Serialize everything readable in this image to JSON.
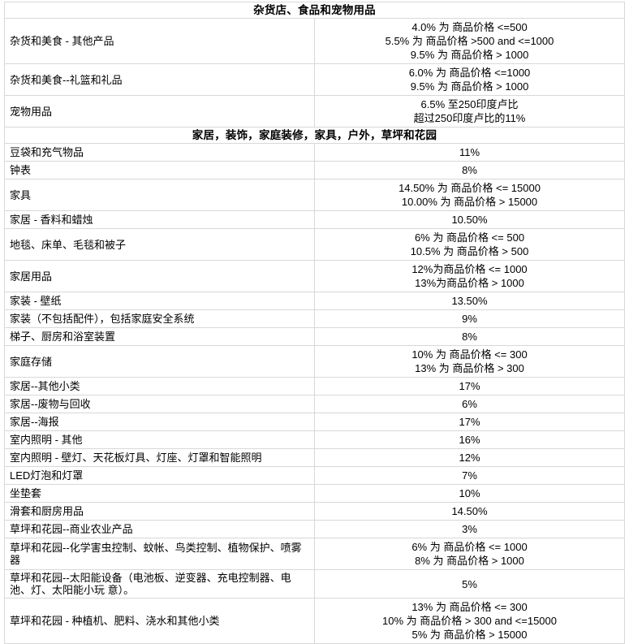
{
  "table": {
    "name": "referral-fee-table",
    "columns": [
      "category",
      "rate"
    ],
    "sections": [
      {
        "header": "杂货店、食品和宠物用品",
        "rows": [
          {
            "category": "杂货和美食 - 其他产品",
            "rates": [
              "4.0% 为 商品价格 <=500",
              "5.5% 为 商品价格 >500 and <=1000",
              "9.5% 为 商品价格 > 1000"
            ]
          },
          {
            "category": "杂货和美食--礼篮和礼品",
            "rates": [
              "6.0% 为 商品价格 <=1000",
              "9.5% 为 商品价格 > 1000"
            ]
          },
          {
            "category": "宠物用品",
            "rates": [
              "6.5% 至250印度卢比",
              "超过250印度卢比的11%"
            ]
          }
        ]
      },
      {
        "header": "家居，装饰，家庭装修，家具，户外，草坪和花园",
        "rows": [
          {
            "category": "豆袋和充气物品",
            "rates": [
              "11%"
            ]
          },
          {
            "category": "钟表",
            "rates": [
              "8%"
            ]
          },
          {
            "category": "家具",
            "rates": [
              "14.50% 为 商品价格 <= 15000",
              "10.00% 为 商品价格 > 15000"
            ]
          },
          {
            "category": "家居 - 香料和蜡烛",
            "rates": [
              "10.50%"
            ]
          },
          {
            "category": "地毯、床单、毛毯和被子",
            "rates": [
              "6% 为 商品价格 <= 500",
              "10.5% 为 商品价格 > 500"
            ]
          },
          {
            "category": "家居用品",
            "rates": [
              "12%为商品价格 <= 1000",
              "13%为商品价格 > 1000"
            ]
          },
          {
            "category": "家装 - 壁纸",
            "rates": [
              "13.50%"
            ]
          },
          {
            "category": "家装（不包括配件），包括家庭安全系统",
            "rates": [
              "9%"
            ]
          },
          {
            "category": "梯子、厨房和浴室装置",
            "rates": [
              "8%"
            ]
          },
          {
            "category": "家庭存储",
            "rates": [
              "10% 为 商品价格 <= 300",
              "13% 为 商品价格 > 300"
            ]
          },
          {
            "category": "家居--其他小类",
            "rates": [
              "17%"
            ]
          },
          {
            "category": "家居--废物与回收",
            "rates": [
              "6%"
            ]
          },
          {
            "category": "家居--海报",
            "rates": [
              "17%"
            ]
          },
          {
            "category": "室内照明 - 其他",
            "rates": [
              "16%"
            ]
          },
          {
            "category": "室内照明 - 壁灯、天花板灯具、灯座、灯罩和智能照明",
            "rates": [
              "12%"
            ]
          },
          {
            "category": "LED灯泡和灯罩",
            "rates": [
              "7%"
            ]
          },
          {
            "category": "坐垫套",
            "rates": [
              "10%"
            ]
          },
          {
            "category": "滑套和厨房用品",
            "rates": [
              "14.50%"
            ]
          },
          {
            "category": "草坪和花园--商业农业产品",
            "rates": [
              "3%"
            ]
          },
          {
            "category": "草坪和花园--化学害虫控制、蚊帐、鸟类控制、植物保护、喷雾器",
            "rates": [
              "6% 为 商品价格 <= 1000",
              "8% 为 商品价格 > 1000"
            ]
          },
          {
            "category": "草坪和花园--太阳能设备（电池板、逆变器、充电控制器、电池、灯、太阳能小玩 意）。",
            "rates": [
              "5%"
            ]
          },
          {
            "category": "草坪和花园 - 种植机、肥料、浇水和其他小类",
            "rates": [
              "13% 为 商品价格 <= 300",
              "10% 为 商品价格 > 300 and <=15000",
              "5% 为 商品价格 > 15000"
            ]
          }
        ]
      }
    ],
    "colors": {
      "border": "#d8d8d8",
      "text": "#000000",
      "background": "#ffffff"
    }
  }
}
